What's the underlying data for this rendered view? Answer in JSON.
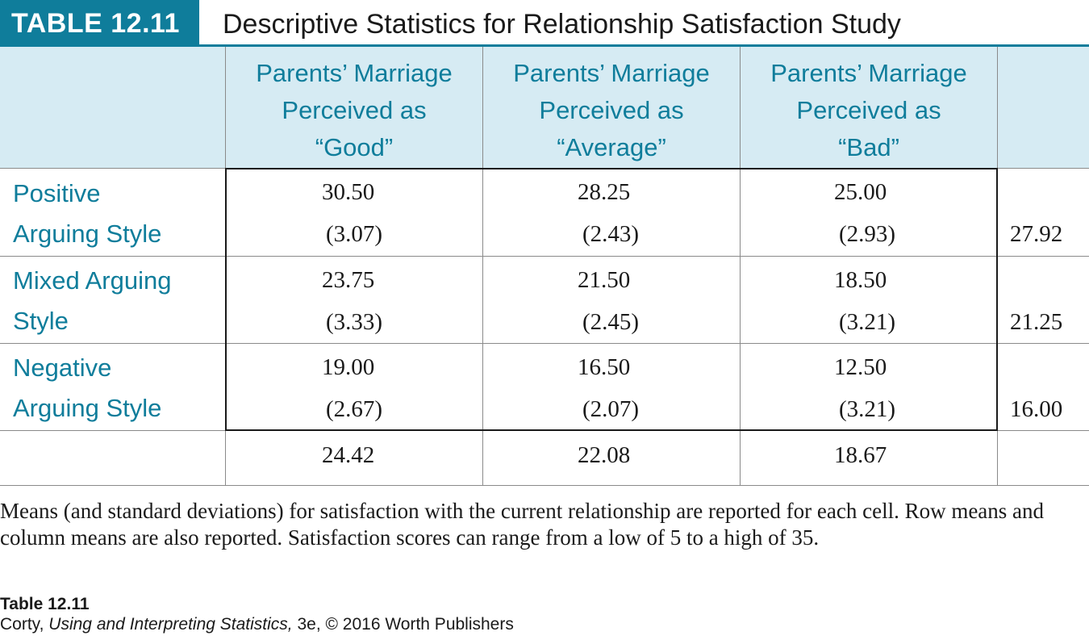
{
  "header": {
    "label": "TABLE 12.11",
    "title": "Descriptive Statistics for Relationship Satisfaction Study"
  },
  "table": {
    "columns": [
      {
        "line1": "Parents’ Marriage",
        "line2": "Perceived as",
        "line3": "“Good”"
      },
      {
        "line1": "Parents’ Marriage",
        "line2": "Perceived as",
        "line3": "“Average”"
      },
      {
        "line1": "Parents’ Marriage",
        "line2": "Perceived as",
        "line3": "“Bad”"
      }
    ],
    "rows": [
      {
        "label1": "Positive",
        "label2": "Arguing Style",
        "cells": [
          {
            "mean": "30.50",
            "sd": "(3.07)"
          },
          {
            "mean": "28.25",
            "sd": "(2.43)"
          },
          {
            "mean": "25.00",
            "sd": "(2.93)"
          }
        ],
        "row_mean": "27.92"
      },
      {
        "label1": "Mixed Arguing",
        "label2": "Style",
        "cells": [
          {
            "mean": "23.75",
            "sd": "(3.33)"
          },
          {
            "mean": "21.50",
            "sd": "(2.45)"
          },
          {
            "mean": "18.50",
            "sd": "(3.21)"
          }
        ],
        "row_mean": "21.25"
      },
      {
        "label1": "Negative",
        "label2": "Arguing Style",
        "cells": [
          {
            "mean": "19.00",
            "sd": "(2.67)"
          },
          {
            "mean": "16.50",
            "sd": "(2.07)"
          },
          {
            "mean": "12.50",
            "sd": "(3.21)"
          }
        ],
        "row_mean": "16.00"
      }
    ],
    "column_means": [
      "24.42",
      "22.08",
      "18.67"
    ]
  },
  "caption": "Means (and standard deviations) for satisfaction with the current relationship are reported for each cell. Row means and column means are also reported. Satisfaction scores can range from a low of 5 to a high of 35.",
  "source": {
    "table_ref": "Table 12.11",
    "author": "Corty, ",
    "book": "Using and Interpreting Statistics,",
    "edition": " 3e, © 2016 Worth Publishers"
  },
  "colors": {
    "accent": "#0f7d9b",
    "header_band": "#d6ebf3"
  }
}
